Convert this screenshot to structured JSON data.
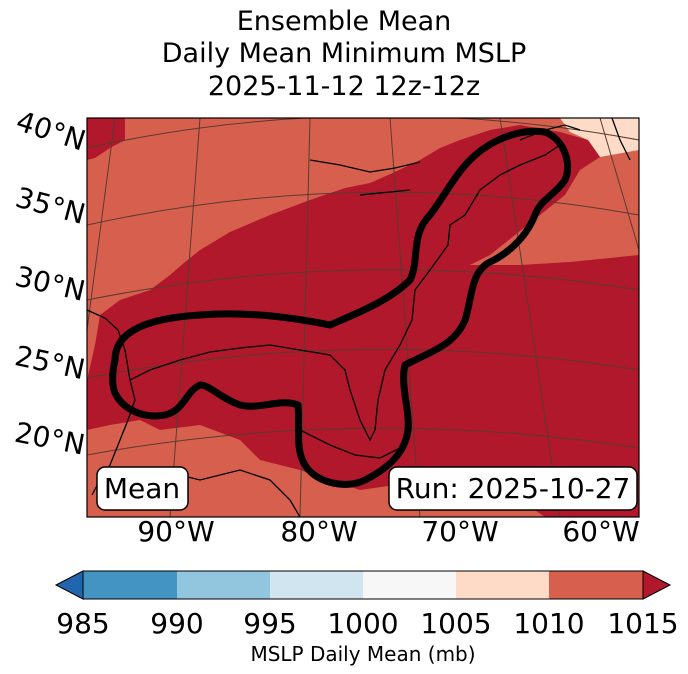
{
  "title": {
    "line1": "Ensemble Mean",
    "line2": "Daily Mean Minimum MSLP",
    "line3": "2025-11-12 12z-12z"
  },
  "map": {
    "lat_labels": [
      "40°N",
      "35°N",
      "30°N",
      "25°N",
      "20°N"
    ],
    "lon_labels": [
      "90°W",
      "80°W",
      "70°W",
      "60°W"
    ],
    "mean_box": "Mean",
    "run_box": "Run: 2025-10-27",
    "colors": {
      "c1005_1010": "#fddbc7",
      "c1010_1015": "#d6604d",
      "c_gt_1015": "#b2182b",
      "contour": "#000000",
      "coast": "#000000",
      "grid": "#5a3a30"
    }
  },
  "colorbar": {
    "ticks": [
      "985",
      "990",
      "995",
      "1000",
      "1005",
      "1010",
      "1015"
    ],
    "label": "MSLP Daily Mean (mb)",
    "colors": [
      "#2166ac",
      "#4393c3",
      "#92c5de",
      "#d1e5f0",
      "#f7f7f7",
      "#fddbc7",
      "#d6604d",
      "#b2182b"
    ]
  }
}
